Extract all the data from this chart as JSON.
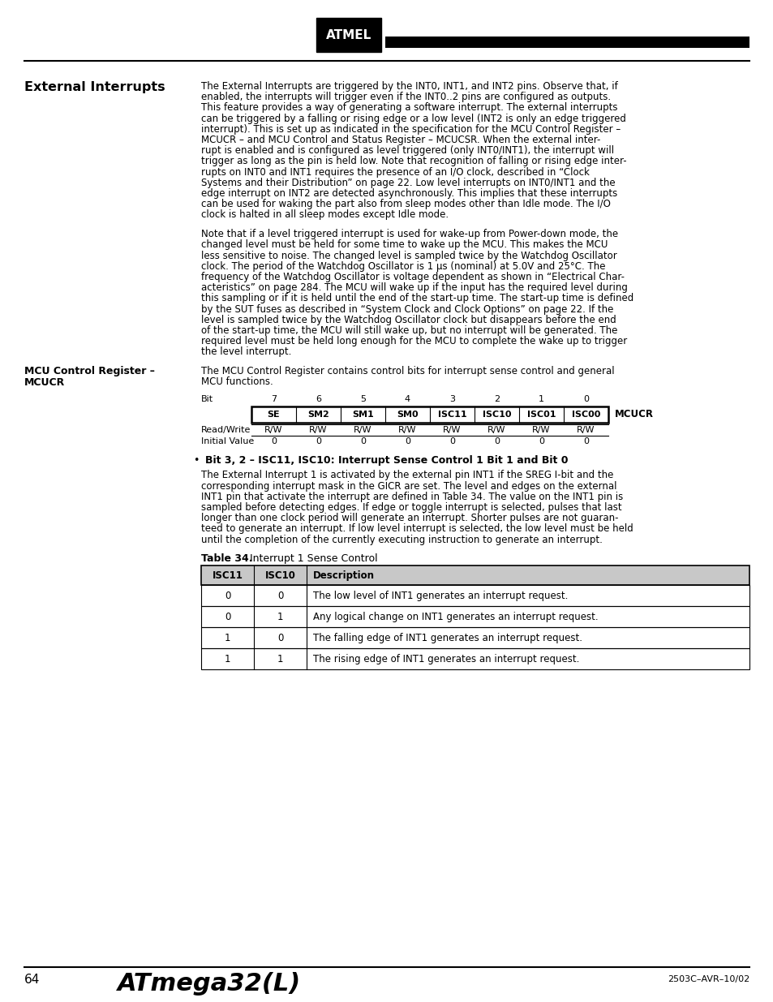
{
  "page_title": "External Interrupts",
  "section2_title_line1": "MCU Control Register –",
  "section2_title_line2": "MCUCR",
  "footer_title": "ATmega32(L)",
  "footer_page": "64",
  "footer_doc": "2503C–AVR–10/02",
  "para1_lines": [
    "The External Interrupts are triggered by the INT0, INT1, and INT2 pins. Observe that, if",
    "enabled, the interrupts will trigger even if the INT0..2 pins are configured as outputs.",
    "This feature provides a way of generating a software interrupt. The external interrupts",
    "can be triggered by a falling or rising edge or a low level (INT2 is only an edge triggered",
    "interrupt). This is set up as indicated in the specification for the MCU Control Register –",
    "MCUCR – and MCU Control and Status Register – MCUCSR. When the external inter-",
    "rupt is enabled and is configured as level triggered (only INT0/INT1), the interrupt will",
    "trigger as long as the pin is held low. Note that recognition of falling or rising edge inter-",
    "rupts on INT0 and INT1 requires the presence of an I/O clock, described in “Clock",
    "Systems and their Distribution” on page 22. Low level interrupts on INT0/INT1 and the",
    "edge interrupt on INT2 are detected asynchronously. This implies that these interrupts",
    "can be used for waking the part also from sleep modes other than Idle mode. The I/O",
    "clock is halted in all sleep modes except Idle mode."
  ],
  "para2_lines": [
    "Note that if a level triggered interrupt is used for wake-up from Power-down mode, the",
    "changed level must be held for some time to wake up the MCU. This makes the MCU",
    "less sensitive to noise. The changed level is sampled twice by the Watchdog Oscillator",
    "clock. The period of the Watchdog Oscillator is 1 μs (nominal) at 5.0V and 25°C. The",
    "frequency of the Watchdog Oscillator is voltage dependent as shown in “Electrical Char-",
    "acteristics” on page 284. The MCU will wake up if the input has the required level during",
    "this sampling or if it is held until the end of the start-up time. The start-up time is defined",
    "by the SUT fuses as described in “System Clock and Clock Options” on page 22. If the",
    "level is sampled twice by the Watchdog Oscillator clock but disappears before the end",
    "of the start-up time, the MCU will still wake up, but no interrupt will be generated. The",
    "required level must be held long enough for the MCU to complete the wake up to trigger",
    "the level interrupt."
  ],
  "para3_lines": [
    "The MCU Control Register contains control bits for interrupt sense control and general",
    "MCU functions."
  ],
  "bit_numbers": [
    "7",
    "6",
    "5",
    "4",
    "3",
    "2",
    "1",
    "0"
  ],
  "bit_names": [
    "SE",
    "SM2",
    "SM1",
    "SM0",
    "ISC11",
    "ISC10",
    "ISC01",
    "ISC00"
  ],
  "rw_values": [
    "R/W",
    "R/W",
    "R/W",
    "R/W",
    "R/W",
    "R/W",
    "R/W",
    "R/W"
  ],
  "init_values": [
    "0",
    "0",
    "0",
    "0",
    "0",
    "0",
    "0",
    "0"
  ],
  "reg_name": "MCUCR",
  "bullet_head": "Bit 3, 2 – ISC11, ISC10: Interrupt Sense Control 1 Bit 1 and Bit 0",
  "para4_lines": [
    "The External Interrupt 1 is activated by the external pin INT1 if the SREG I-bit and the",
    "corresponding interrupt mask in the GICR are set. The level and edges on the external",
    "INT1 pin that activate the interrupt are defined in Table 34. The value on the INT1 pin is",
    "sampled before detecting edges. If edge or toggle interrupt is selected, pulses that last",
    "longer than one clock period will generate an interrupt. Shorter pulses are not guaran-",
    "teed to generate an interrupt. If low level interrupt is selected, the low level must be held",
    "until the completion of the currently executing instruction to generate an interrupt."
  ],
  "table_title_bold": "Table 34.",
  "table_title_normal": "  Interrupt 1 Sense Control",
  "table_headers": [
    "ISC11",
    "ISC10",
    "Description"
  ],
  "table_rows": [
    [
      "0",
      "0",
      "The low level of INT1 generates an interrupt request."
    ],
    [
      "0",
      "1",
      "Any logical change on INT1 generates an interrupt request."
    ],
    [
      "1",
      "0",
      "The falling edge of INT1 generates an interrupt request."
    ],
    [
      "1",
      "1",
      "The rising edge of INT1 generates an interrupt request."
    ]
  ],
  "bg_color": "#ffffff",
  "text_color": "#000000",
  "header_bg": "#c8c8c8"
}
